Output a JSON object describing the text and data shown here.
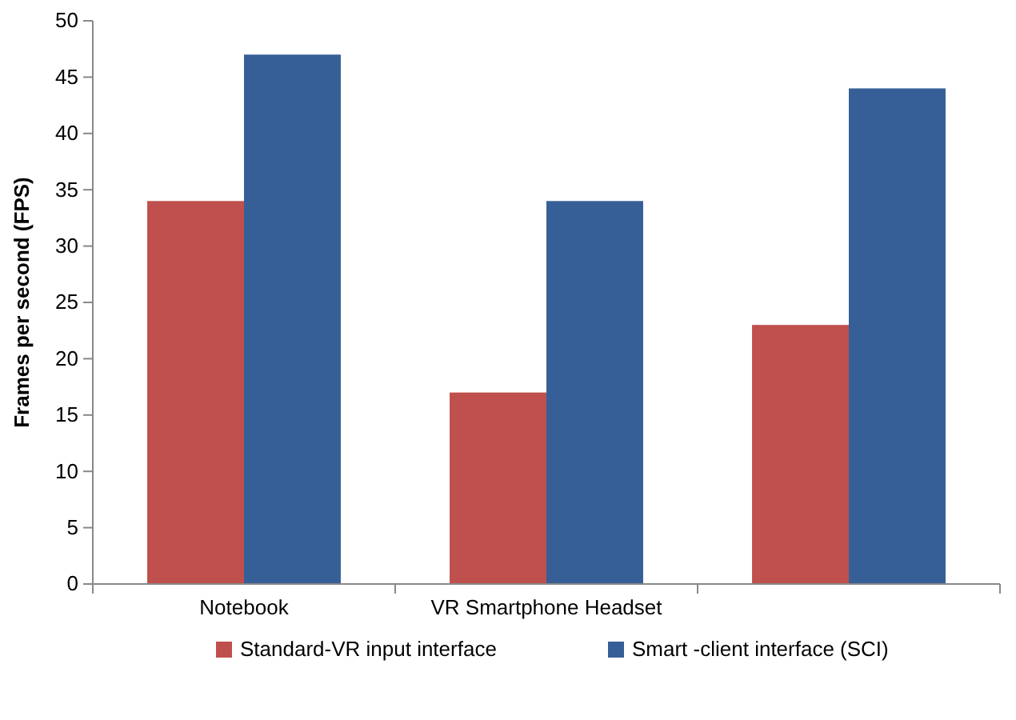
{
  "chart_data": {
    "type": "bar",
    "ylabel": "Frames per second (FPS)",
    "categories": [
      "Notebook",
      "VR Smartphone Headset",
      null
    ],
    "series": [
      {
        "name": "Standard-VR input interface",
        "color": "#c0504d",
        "values": [
          34,
          17,
          23
        ]
      },
      {
        "name": "Smart -client interface (SCI)",
        "color": "#375f97",
        "values": [
          47,
          34,
          44
        ]
      }
    ],
    "ylim": [
      0,
      50
    ],
    "yticks": [
      0,
      5,
      10,
      15,
      20,
      25,
      30,
      35,
      40,
      45,
      50
    ],
    "grid": false,
    "legend": "bottom"
  }
}
